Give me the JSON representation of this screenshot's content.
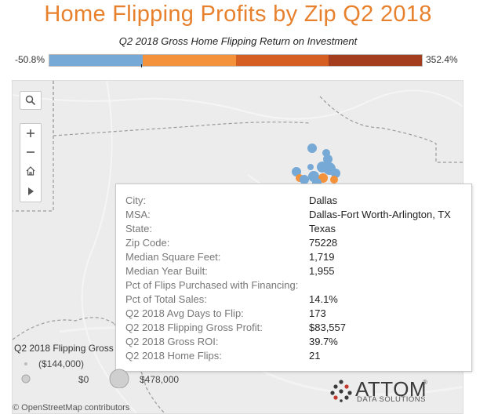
{
  "title": "Home Flipping Profits by Zip Q2 2018",
  "legend": {
    "title": "Q2 2018 Gross Home Flipping Return on Investment",
    "min_label": "-50.8%",
    "max_label": "352.4%",
    "colors": [
      "#76a9d5",
      "#f3923a",
      "#d55f23",
      "#a43c1e"
    ]
  },
  "map_tools": {
    "search_icon": "search-icon",
    "zoom_in_icon": "plus-icon",
    "zoom_out_icon": "minus-icon",
    "home_icon": "home-icon",
    "expand_icon": "play-icon"
  },
  "tooltip": {
    "rows": [
      {
        "label": "City:",
        "value": "Dallas"
      },
      {
        "label": "MSA:",
        "value": "Dallas-Fort Worth-Arlington, TX"
      },
      {
        "label": "State:",
        "value": "Texas"
      },
      {
        "label": "Zip Code:",
        "value": "75228"
      },
      {
        "label": "Median Square Feet:",
        "value": "1,719"
      },
      {
        "label": "Median Year Built:",
        "value": "1,955"
      },
      {
        "label": "Pct of Flips Purchased with Financing:",
        "value": ""
      },
      {
        "label": "Pct of Total Sales:",
        "value": "14.1%"
      },
      {
        "label": "Q2 2018 Avg Days to Flip:",
        "value": "173"
      },
      {
        "label": "Q2 2018 Flipping Gross Profit:",
        "value": "$83,557"
      },
      {
        "label": "Q2 2018 Gross ROI:",
        "value": "39.7%"
      },
      {
        "label": "Q2 2018 Home Flips:",
        "value": "21"
      }
    ]
  },
  "size_legend": {
    "title": "Q2 2018 Flipping Gross",
    "items": [
      "($144,000)",
      "$0",
      "$478,000"
    ]
  },
  "branding": {
    "name": "ATTOM",
    "registered": "®",
    "tagline": "DATA SOLUTIONS"
  },
  "attribution": "© OpenStreetMap contributors"
}
